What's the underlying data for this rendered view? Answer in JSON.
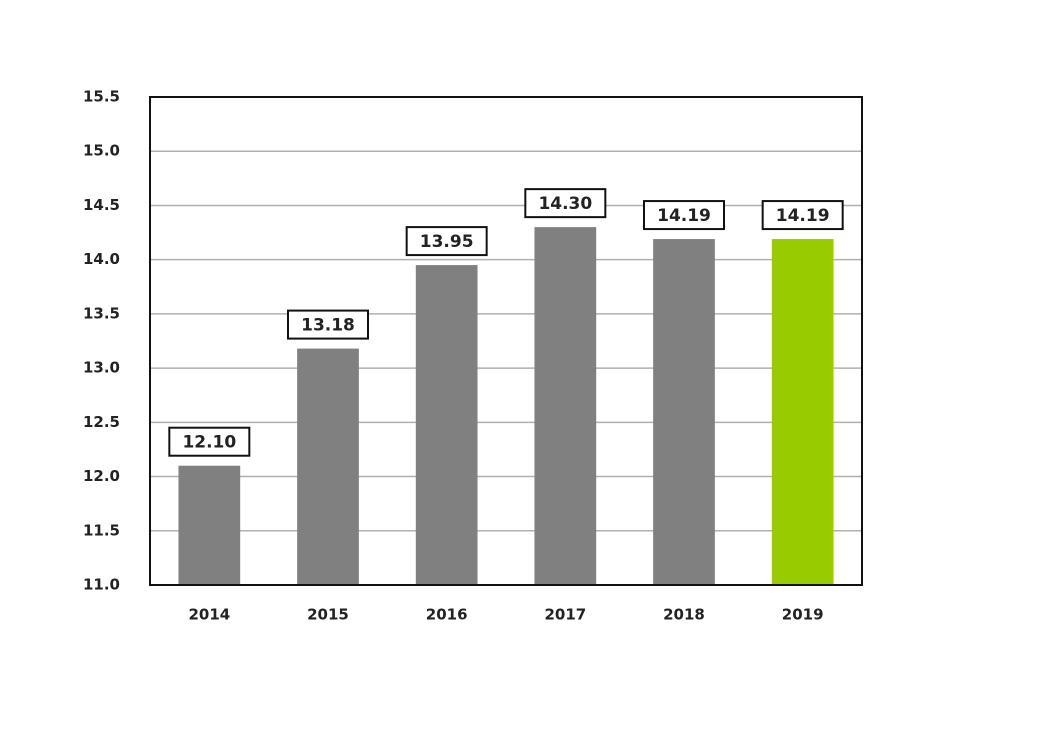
{
  "chart_data": {
    "type": "bar",
    "categories": [
      "2014",
      "2015",
      "2016",
      "2017",
      "2018",
      "2019"
    ],
    "values": [
      12.1,
      13.18,
      13.95,
      14.3,
      14.19,
      14.19
    ],
    "value_labels": [
      "12.10",
      "13.18",
      "13.95",
      "14.30",
      "14.19",
      "14.19"
    ],
    "colors": [
      "#808080",
      "#808080",
      "#808080",
      "#808080",
      "#808080",
      "#99cc00"
    ],
    "ylim": [
      11,
      15.5
    ],
    "yticks": [
      {
        "value": 11,
        "label": "11.0"
      },
      11.5,
      {
        "value": 12,
        "label": "12.0"
      },
      12.5,
      {
        "value": 13,
        "label": "13.0"
      },
      13.5,
      {
        "value": 14,
        "label": "14.0"
      },
      14.5,
      {
        "value": 15,
        "label": "15.0"
      },
      15.5
    ],
    "grid": true
  }
}
